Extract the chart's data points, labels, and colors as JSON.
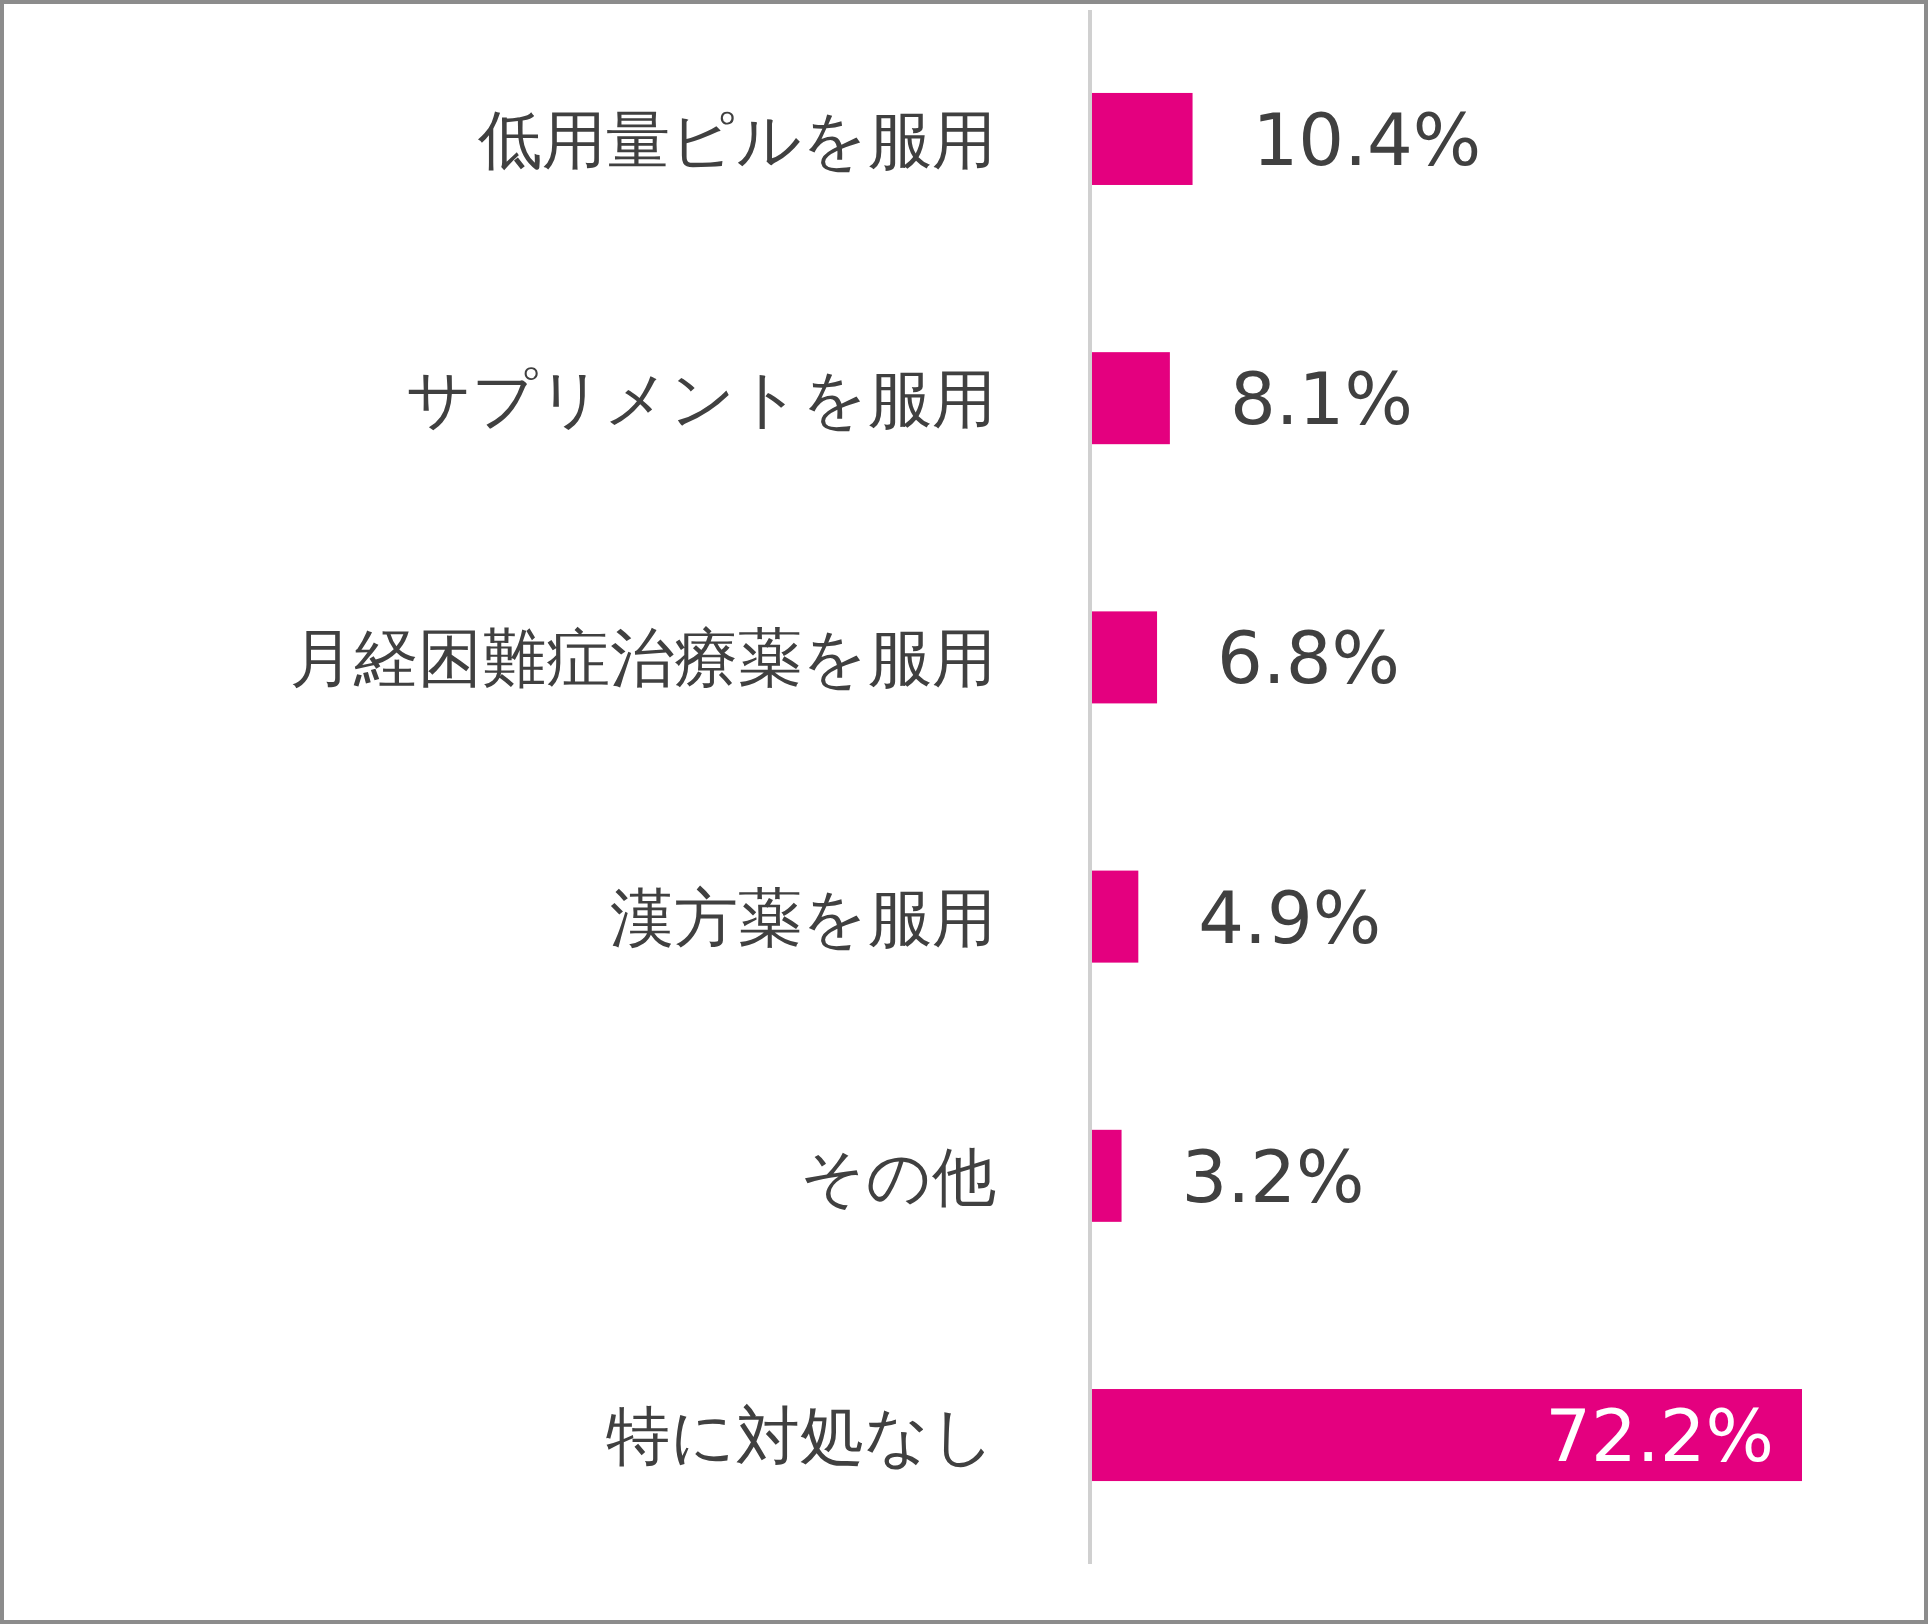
{
  "chart_data": {
    "type": "bar",
    "orientation": "horizontal",
    "categories": [
      "低用量ピルを服用",
      "サプリメントを服用",
      "月経困難症治療薬を服用",
      "漢方薬を服用",
      "その他",
      "特に対処なし"
    ],
    "values": [
      10.4,
      8.1,
      6.8,
      4.9,
      3.2,
      72.2
    ],
    "value_labels": [
      "10.4%",
      "8.1%",
      "6.8%",
      "4.9%",
      "3.2%",
      "72.2%"
    ],
    "color": "#e4007f"
  }
}
